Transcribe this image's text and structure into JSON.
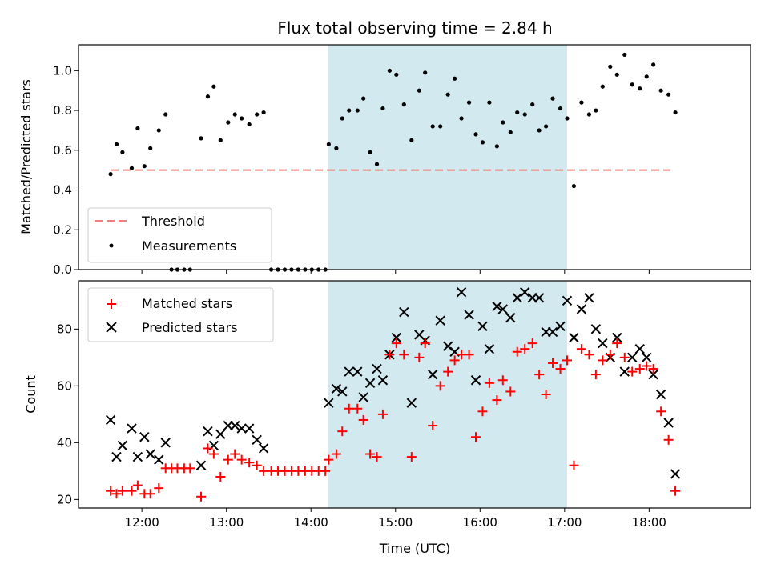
{
  "chart_data": [
    {
      "type": "scatter",
      "title": "Flux total observing time = 2.84 h",
      "xlabel": "",
      "ylabel": "Matched/Predicted stars",
      "ylim": [
        0,
        1.13
      ],
      "yticks": [
        "0.0",
        "0.2",
        "0.4",
        "0.6",
        "0.8",
        "1.0"
      ],
      "ytick_values": [
        0,
        0.2,
        0.4,
        0.6,
        0.8,
        1.0
      ],
      "shaded_region": [
        14.2,
        17.03
      ],
      "shaded_color": "#d3e9f0",
      "legend_position": "lower-left",
      "threshold": {
        "name": "Threshold",
        "y": 0.5,
        "x_start": 11.63,
        "x_end": 18.25,
        "color": "#f08080"
      },
      "series": [
        {
          "name": "Measurements",
          "color": "#000000",
          "points": [
            [
              11.63,
              0.48
            ],
            [
              11.7,
              0.63
            ],
            [
              11.77,
              0.59
            ],
            [
              11.88,
              0.51
            ],
            [
              11.95,
              0.71
            ],
            [
              12.03,
              0.52
            ],
            [
              12.1,
              0.61
            ],
            [
              12.2,
              0.7
            ],
            [
              12.28,
              0.78
            ],
            [
              12.35,
              0.0
            ],
            [
              12.42,
              0.0
            ],
            [
              12.5,
              0.0
            ],
            [
              12.57,
              0.0
            ],
            [
              12.7,
              0.66
            ],
            [
              12.78,
              0.87
            ],
            [
              12.85,
              0.92
            ],
            [
              12.93,
              0.65
            ],
            [
              13.02,
              0.74
            ],
            [
              13.1,
              0.78
            ],
            [
              13.18,
              0.76
            ],
            [
              13.27,
              0.73
            ],
            [
              13.36,
              0.78
            ],
            [
              13.44,
              0.79
            ],
            [
              13.53,
              0.0
            ],
            [
              13.61,
              0.0
            ],
            [
              13.69,
              0.0
            ],
            [
              13.77,
              0.0
            ],
            [
              13.85,
              0.0
            ],
            [
              13.93,
              0.0
            ],
            [
              14.01,
              0.0
            ],
            [
              14.09,
              0.0
            ],
            [
              14.17,
              0.0
            ],
            [
              14.21,
              0.63
            ],
            [
              14.3,
              0.61
            ],
            [
              14.37,
              0.76
            ],
            [
              14.45,
              0.8
            ],
            [
              14.55,
              0.8
            ],
            [
              14.62,
              0.86
            ],
            [
              14.7,
              0.59
            ],
            [
              14.78,
              0.53
            ],
            [
              14.85,
              0.81
            ],
            [
              14.93,
              1.0
            ],
            [
              15.01,
              0.98
            ],
            [
              15.1,
              0.83
            ],
            [
              15.19,
              0.65
            ],
            [
              15.28,
              0.9
            ],
            [
              15.35,
              0.99
            ],
            [
              15.44,
              0.72
            ],
            [
              15.53,
              0.72
            ],
            [
              15.62,
              0.88
            ],
            [
              15.7,
              0.96
            ],
            [
              15.78,
              0.76
            ],
            [
              15.87,
              0.84
            ],
            [
              15.95,
              0.68
            ],
            [
              16.03,
              0.64
            ],
            [
              16.11,
              0.84
            ],
            [
              16.2,
              0.62
            ],
            [
              16.27,
              0.74
            ],
            [
              16.36,
              0.69
            ],
            [
              16.44,
              0.79
            ],
            [
              16.53,
              0.78
            ],
            [
              16.62,
              0.83
            ],
            [
              16.7,
              0.7
            ],
            [
              16.78,
              0.72
            ],
            [
              16.86,
              0.86
            ],
            [
              16.95,
              0.81
            ],
            [
              17.03,
              0.76
            ],
            [
              17.11,
              0.42
            ],
            [
              17.2,
              0.84
            ],
            [
              17.29,
              0.78
            ],
            [
              17.37,
              0.8
            ],
            [
              17.45,
              0.92
            ],
            [
              17.54,
              1.02
            ],
            [
              17.62,
              0.98
            ],
            [
              17.71,
              1.08
            ],
            [
              17.8,
              0.93
            ],
            [
              17.89,
              0.91
            ],
            [
              17.97,
              0.97
            ],
            [
              18.05,
              1.03
            ],
            [
              18.14,
              0.9
            ],
            [
              18.23,
              0.88
            ],
            [
              18.31,
              0.79
            ]
          ]
        }
      ]
    },
    {
      "type": "scatter",
      "title": "",
      "xlabel": "Time (UTC)",
      "ylabel": "Count",
      "xlim": [
        11.25,
        19.2
      ],
      "xticks": [
        "12:00",
        "13:00",
        "14:00",
        "15:00",
        "16:00",
        "17:00",
        "18:00"
      ],
      "xtick_values": [
        12,
        13,
        14,
        15,
        16,
        17,
        18
      ],
      "ylim": [
        17,
        97
      ],
      "yticks": [
        "20",
        "40",
        "60",
        "80"
      ],
      "ytick_values": [
        20,
        40,
        60,
        80
      ],
      "shaded_region": [
        14.2,
        17.03
      ],
      "legend_position": "upper-left",
      "series": [
        {
          "name": "Matched stars",
          "marker": "plus",
          "color": "#ff0000",
          "points": [
            [
              11.63,
              23
            ],
            [
              11.7,
              22
            ],
            [
              11.77,
              23
            ],
            [
              11.88,
              23
            ],
            [
              11.95,
              25
            ],
            [
              12.03,
              22
            ],
            [
              12.1,
              22
            ],
            [
              12.2,
              24
            ],
            [
              12.28,
              31
            ],
            [
              12.35,
              31
            ],
            [
              12.42,
              31
            ],
            [
              12.5,
              31
            ],
            [
              12.57,
              31
            ],
            [
              12.7,
              21
            ],
            [
              12.78,
              38
            ],
            [
              12.85,
              36
            ],
            [
              12.93,
              28
            ],
            [
              13.02,
              34
            ],
            [
              13.1,
              36
            ],
            [
              13.18,
              34
            ],
            [
              13.27,
              33
            ],
            [
              13.36,
              32
            ],
            [
              13.44,
              30
            ],
            [
              13.53,
              30
            ],
            [
              13.61,
              30
            ],
            [
              13.69,
              30
            ],
            [
              13.77,
              30
            ],
            [
              13.85,
              30
            ],
            [
              13.93,
              30
            ],
            [
              14.01,
              30
            ],
            [
              14.09,
              30
            ],
            [
              14.17,
              30
            ],
            [
              14.21,
              34
            ],
            [
              14.3,
              36
            ],
            [
              14.37,
              44
            ],
            [
              14.45,
              52
            ],
            [
              14.55,
              52
            ],
            [
              14.62,
              48
            ],
            [
              14.7,
              36
            ],
            [
              14.78,
              35
            ],
            [
              14.85,
              50
            ],
            [
              14.93,
              71
            ],
            [
              15.01,
              75
            ],
            [
              15.1,
              71
            ],
            [
              15.19,
              35
            ],
            [
              15.28,
              70
            ],
            [
              15.35,
              75
            ],
            [
              15.44,
              46
            ],
            [
              15.53,
              60
            ],
            [
              15.62,
              65
            ],
            [
              15.7,
              69
            ],
            [
              15.78,
              71
            ],
            [
              15.87,
              71
            ],
            [
              15.95,
              42
            ],
            [
              16.03,
              51
            ],
            [
              16.11,
              61
            ],
            [
              16.2,
              55
            ],
            [
              16.27,
              62
            ],
            [
              16.36,
              58
            ],
            [
              16.44,
              72
            ],
            [
              16.53,
              73
            ],
            [
              16.62,
              75
            ],
            [
              16.7,
              64
            ],
            [
              16.78,
              57
            ],
            [
              16.86,
              68
            ],
            [
              16.95,
              66
            ],
            [
              17.03,
              69
            ],
            [
              17.11,
              32
            ],
            [
              17.2,
              73
            ],
            [
              17.29,
              71
            ],
            [
              17.37,
              64
            ],
            [
              17.45,
              69
            ],
            [
              17.54,
              71
            ],
            [
              17.62,
              75
            ],
            [
              17.71,
              70
            ],
            [
              17.8,
              65
            ],
            [
              17.89,
              66
            ],
            [
              17.97,
              67
            ],
            [
              18.05,
              66
            ],
            [
              18.14,
              51
            ],
            [
              18.23,
              41
            ],
            [
              18.31,
              23
            ]
          ]
        },
        {
          "name": "Predicted stars",
          "marker": "x",
          "color": "#000000",
          "points": [
            [
              11.63,
              48
            ],
            [
              11.7,
              35
            ],
            [
              11.77,
              39
            ],
            [
              11.88,
              45
            ],
            [
              11.95,
              35
            ],
            [
              12.03,
              42
            ],
            [
              12.1,
              36
            ],
            [
              12.2,
              34
            ],
            [
              12.28,
              40
            ],
            [
              12.7,
              32
            ],
            [
              12.78,
              44
            ],
            [
              12.85,
              39
            ],
            [
              12.93,
              43
            ],
            [
              13.02,
              46
            ],
            [
              13.1,
              46
            ],
            [
              13.18,
              45
            ],
            [
              13.27,
              45
            ],
            [
              13.36,
              41
            ],
            [
              13.44,
              38
            ],
            [
              14.21,
              54
            ],
            [
              14.3,
              59
            ],
            [
              14.37,
              58
            ],
            [
              14.45,
              65
            ],
            [
              14.55,
              65
            ],
            [
              14.62,
              56
            ],
            [
              14.7,
              61
            ],
            [
              14.78,
              66
            ],
            [
              14.85,
              62
            ],
            [
              14.93,
              71
            ],
            [
              15.01,
              77
            ],
            [
              15.1,
              86
            ],
            [
              15.19,
              54
            ],
            [
              15.28,
              78
            ],
            [
              15.35,
              76
            ],
            [
              15.44,
              64
            ],
            [
              15.53,
              83
            ],
            [
              15.62,
              74
            ],
            [
              15.7,
              72
            ],
            [
              15.78,
              93
            ],
            [
              15.87,
              85
            ],
            [
              15.95,
              62
            ],
            [
              16.03,
              81
            ],
            [
              16.11,
              73
            ],
            [
              16.2,
              88
            ],
            [
              16.27,
              87
            ],
            [
              16.36,
              84
            ],
            [
              16.44,
              91
            ],
            [
              16.53,
              93
            ],
            [
              16.62,
              91
            ],
            [
              16.7,
              91
            ],
            [
              16.78,
              79
            ],
            [
              16.86,
              79
            ],
            [
              16.95,
              81
            ],
            [
              17.03,
              90
            ],
            [
              17.11,
              77
            ],
            [
              17.2,
              87
            ],
            [
              17.29,
              91
            ],
            [
              17.37,
              80
            ],
            [
              17.45,
              75
            ],
            [
              17.54,
              70
            ],
            [
              17.62,
              77
            ],
            [
              17.71,
              65
            ],
            [
              17.8,
              70
            ],
            [
              17.89,
              73
            ],
            [
              17.97,
              70
            ],
            [
              18.05,
              64
            ],
            [
              18.14,
              57
            ],
            [
              18.23,
              47
            ],
            [
              18.31,
              29
            ]
          ]
        }
      ]
    }
  ]
}
